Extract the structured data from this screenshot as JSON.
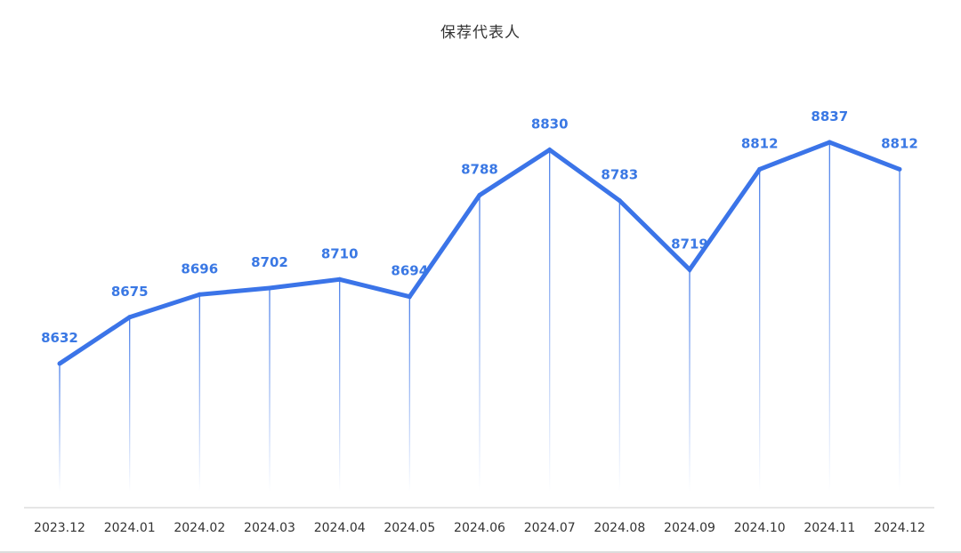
{
  "chart_data": {
    "type": "line",
    "title": "保荐代表人",
    "xlabel": "",
    "ylabel": "",
    "categories": [
      "2023.12",
      "2024.01",
      "2024.02",
      "2024.03",
      "2024.04",
      "2024.05",
      "2024.06",
      "2024.07",
      "2024.08",
      "2024.09",
      "2024.10",
      "2024.11",
      "2024.12"
    ],
    "series": [
      {
        "values": [
          8632,
          8675,
          8696,
          8702,
          8710,
          8694,
          8788,
          8830,
          8783,
          8719,
          8812,
          8837,
          8812
        ]
      }
    ],
    "data_labels": true,
    "grid": false,
    "legend": "none",
    "y_axis_visible": false,
    "colors": {
      "line": "#3b74e8",
      "label": "#3a78e4",
      "drop_line": "#3b74e8",
      "axis": "#cccccc",
      "tick_text": "#333333"
    }
  }
}
